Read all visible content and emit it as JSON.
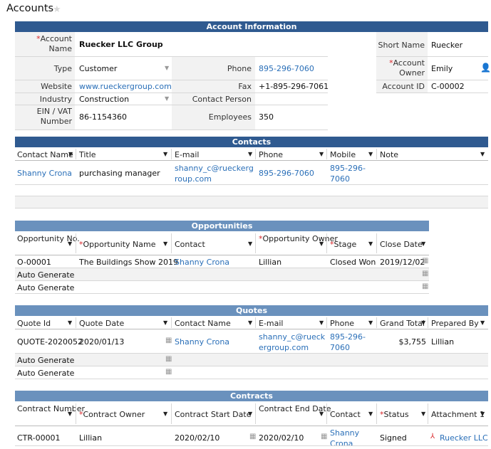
{
  "page": {
    "title": "Accounts"
  },
  "account": {
    "section_title": "Account Information",
    "name_label": "Account Name",
    "name_value": "Ruecker LLC Group",
    "type_label": "Type",
    "type_value": "Customer",
    "website_label": "Website",
    "website_value": "www.rueckergroup.com",
    "industry_label": "Industry",
    "industry_value": "Construction",
    "ein_label": "EIN / VAT Number",
    "ein_value": "86-1154360",
    "phone_label": "Phone",
    "phone_value": "895-296-7060",
    "fax_label": "Fax",
    "fax_value": "+1-895-296-7061",
    "contact_person_label": "Contact Person",
    "contact_person_value": "",
    "employees_label": "Employees",
    "employees_value": "350",
    "short_name_label": "Short Name",
    "short_name_value": "Ruecker",
    "owner_label": "Account Owner",
    "owner_value": "Emily",
    "account_id_label": "Account ID",
    "account_id_value": "C-00002"
  },
  "contacts": {
    "section_title": "Contacts",
    "headers": [
      "Contact Name",
      "Title",
      "E-mail",
      "Phone",
      "Mobile",
      "Note"
    ],
    "row": {
      "name": "Shanny Crona",
      "title": "purchasing manager",
      "email": "shanny_c@rueckergroup.com",
      "phone": "895-296-7060",
      "mobile": "895-296-7060",
      "note": ""
    }
  },
  "opportunities": {
    "section_title": "Opportunities",
    "headers": [
      "Opportunity No.",
      "Opportunity Name",
      "Contact",
      "Opportunity Owner",
      "Stage",
      "Close Date"
    ],
    "row": {
      "no": "O-00001",
      "name": "The Buildings Show 2019",
      "contact": "Shanny Crona",
      "owner": "Lillian",
      "stage": "Closed Won",
      "close_date": "2019/12/02"
    },
    "auto1": "Auto Generate",
    "auto2": "Auto Generate"
  },
  "quotes": {
    "section_title": "Quotes",
    "headers": [
      "Quote Id",
      "Quote Date",
      "Contact Name",
      "E-mail",
      "Phone",
      "Grand Total",
      "Prepared By"
    ],
    "row": {
      "id": "QUOTE-2020052",
      "date": "2020/01/13",
      "contact": "Shanny Crona",
      "email": "shanny_c@rueckergroup.com",
      "phone": "895-296-7060",
      "total": "$3,755",
      "prepared_by": "Lillian"
    },
    "auto1": "Auto Generate",
    "auto2": "Auto Generate"
  },
  "contracts": {
    "section_title": "Contracts",
    "headers": [
      "Contract Number",
      "Contract Owner",
      "Contract Start Date",
      "Contract End Date",
      "Contact",
      "Status",
      "Attachment 1"
    ],
    "row": {
      "number": "CTR-00001",
      "owner": "Lillian",
      "start": "2020/02/10",
      "end": "2020/02/10",
      "contact": "Shanny Crona",
      "status": "Signed",
      "attachment": "Ruecker LLC"
    }
  },
  "colors": {
    "header_dark": "#2f5a90",
    "header_mid": "#6a91bd",
    "link": "#2a6fb8",
    "required": "#d9262a"
  },
  "icons": [
    "star-icon",
    "dropdown-caret-icon",
    "calendar-icon",
    "person-icon",
    "pdf-icon"
  ]
}
